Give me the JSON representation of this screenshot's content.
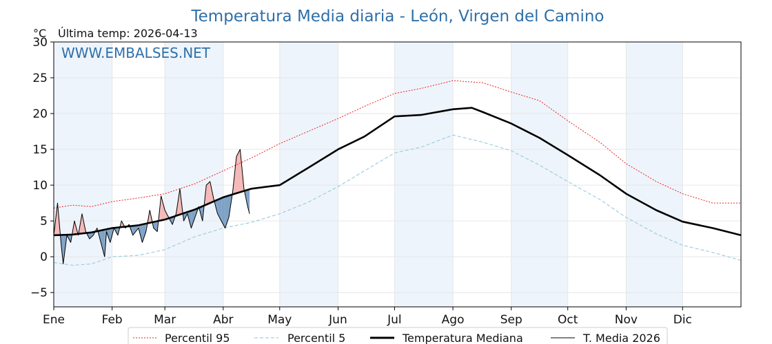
{
  "chart_data": {
    "type": "line",
    "title": "Temperatura Media diaria - León, Virgen del Camino",
    "unit_label": "°C",
    "last_temp": "Última temp: 2026-04-13",
    "watermark": "WWW.EMBALSES.NET",
    "ylim": [
      -7,
      30
    ],
    "yticks": [
      30,
      25,
      20,
      15,
      10,
      5,
      0,
      -5
    ],
    "xlim": [
      0,
      365
    ],
    "months": [
      {
        "label": "Ene",
        "start": 0
      },
      {
        "label": "Feb",
        "start": 31
      },
      {
        "label": "Mar",
        "start": 59
      },
      {
        "label": "Abr",
        "start": 90
      },
      {
        "label": "May",
        "start": 120
      },
      {
        "label": "Jun",
        "start": 151
      },
      {
        "label": "Jul",
        "start": 181
      },
      {
        "label": "Ago",
        "start": 212
      },
      {
        "label": "Sep",
        "start": 243
      },
      {
        "label": "Oct",
        "start": 273
      },
      {
        "label": "Nov",
        "start": 304
      },
      {
        "label": "Dic",
        "start": 334
      }
    ],
    "grid": true,
    "legend": {
      "position": "bottom-center"
    },
    "colors": {
      "p95": "#e8201e",
      "p5": "#9ecde0",
      "median": "#000000",
      "current": "#000000",
      "above": "#f4b9b9",
      "below": "#7fa3c6",
      "band": "#eef4fb"
    },
    "series": [
      {
        "key": "p95",
        "name": "Percentil 95",
        "points": [
          [
            0,
            6.8
          ],
          [
            10,
            7.2
          ],
          [
            20,
            7.0
          ],
          [
            31,
            7.7
          ],
          [
            45,
            8.2
          ],
          [
            59,
            8.8
          ],
          [
            75,
            10.2
          ],
          [
            90,
            12.0
          ],
          [
            105,
            13.8
          ],
          [
            120,
            15.8
          ],
          [
            135,
            17.5
          ],
          [
            151,
            19.3
          ],
          [
            165,
            21.0
          ],
          [
            181,
            22.8
          ],
          [
            195,
            23.5
          ],
          [
            212,
            24.6
          ],
          [
            228,
            24.3
          ],
          [
            243,
            23.0
          ],
          [
            258,
            21.8
          ],
          [
            273,
            19.0
          ],
          [
            290,
            16.0
          ],
          [
            304,
            13.0
          ],
          [
            320,
            10.5
          ],
          [
            334,
            8.8
          ],
          [
            350,
            7.5
          ],
          [
            365,
            7.5
          ]
        ]
      },
      {
        "key": "p5",
        "name": "Percentil 5",
        "points": [
          [
            0,
            -0.8
          ],
          [
            10,
            -1.2
          ],
          [
            20,
            -1.0
          ],
          [
            31,
            0.0
          ],
          [
            45,
            0.2
          ],
          [
            59,
            1.0
          ],
          [
            75,
            2.8
          ],
          [
            90,
            4.0
          ],
          [
            105,
            4.8
          ],
          [
            120,
            6.0
          ],
          [
            135,
            7.6
          ],
          [
            151,
            9.8
          ],
          [
            165,
            12.0
          ],
          [
            181,
            14.5
          ],
          [
            195,
            15.3
          ],
          [
            212,
            17.0
          ],
          [
            228,
            16.0
          ],
          [
            243,
            14.8
          ],
          [
            258,
            12.8
          ],
          [
            273,
            10.5
          ],
          [
            290,
            8.0
          ],
          [
            304,
            5.5
          ],
          [
            320,
            3.2
          ],
          [
            334,
            1.6
          ],
          [
            350,
            0.6
          ],
          [
            365,
            -0.5
          ]
        ]
      },
      {
        "key": "median",
        "name": "Temperatura Mediana",
        "points": [
          [
            0,
            3.0
          ],
          [
            10,
            3.1
          ],
          [
            20,
            3.4
          ],
          [
            31,
            4.0
          ],
          [
            45,
            4.4
          ],
          [
            59,
            5.2
          ],
          [
            75,
            6.6
          ],
          [
            90,
            8.3
          ],
          [
            105,
            9.5
          ],
          [
            120,
            10.0
          ],
          [
            135,
            12.4
          ],
          [
            151,
            15.0
          ],
          [
            165,
            16.8
          ],
          [
            181,
            19.6
          ],
          [
            195,
            19.8
          ],
          [
            212,
            20.6
          ],
          [
            222,
            20.8
          ],
          [
            228,
            20.2
          ],
          [
            243,
            18.6
          ],
          [
            258,
            16.6
          ],
          [
            273,
            14.2
          ],
          [
            290,
            11.4
          ],
          [
            304,
            8.8
          ],
          [
            320,
            6.5
          ],
          [
            334,
            4.9
          ],
          [
            350,
            4.0
          ],
          [
            365,
            3.0
          ]
        ]
      },
      {
        "key": "current",
        "name": "T. Media 2026",
        "points": [
          [
            0,
            3.0
          ],
          [
            2,
            7.5
          ],
          [
            4,
            1.5
          ],
          [
            5,
            -1.0
          ],
          [
            7,
            3.0
          ],
          [
            9,
            2.0
          ],
          [
            11,
            5.0
          ],
          [
            13,
            3.0
          ],
          [
            15,
            6.0
          ],
          [
            17,
            3.5
          ],
          [
            19,
            2.5
          ],
          [
            21,
            3.0
          ],
          [
            23,
            4.0
          ],
          [
            25,
            2.0
          ],
          [
            27,
            0.0
          ],
          [
            28,
            3.5
          ],
          [
            30,
            2.0
          ],
          [
            32,
            4.0
          ],
          [
            34,
            3.0
          ],
          [
            36,
            5.0
          ],
          [
            38,
            4.0
          ],
          [
            40,
            4.5
          ],
          [
            42,
            3.0
          ],
          [
            45,
            4.0
          ],
          [
            47,
            2.0
          ],
          [
            49,
            3.5
          ],
          [
            51,
            6.5
          ],
          [
            53,
            4.0
          ],
          [
            55,
            3.5
          ],
          [
            57,
            8.5
          ],
          [
            59,
            6.5
          ],
          [
            61,
            5.5
          ],
          [
            63,
            4.5
          ],
          [
            65,
            6.0
          ],
          [
            67,
            9.5
          ],
          [
            69,
            5.0
          ],
          [
            71,
            6.0
          ],
          [
            73,
            4.0
          ],
          [
            75,
            5.5
          ],
          [
            77,
            7.0
          ],
          [
            79,
            5.0
          ],
          [
            81,
            10.0
          ],
          [
            83,
            10.5
          ],
          [
            85,
            8.0
          ],
          [
            87,
            6.0
          ],
          [
            89,
            5.0
          ],
          [
            91,
            4.0
          ],
          [
            93,
            5.5
          ],
          [
            95,
            9.0
          ],
          [
            97,
            14.0
          ],
          [
            99,
            15.0
          ],
          [
            101,
            9.5
          ],
          [
            103,
            7.0
          ],
          [
            104,
            6.0
          ]
        ]
      }
    ]
  }
}
